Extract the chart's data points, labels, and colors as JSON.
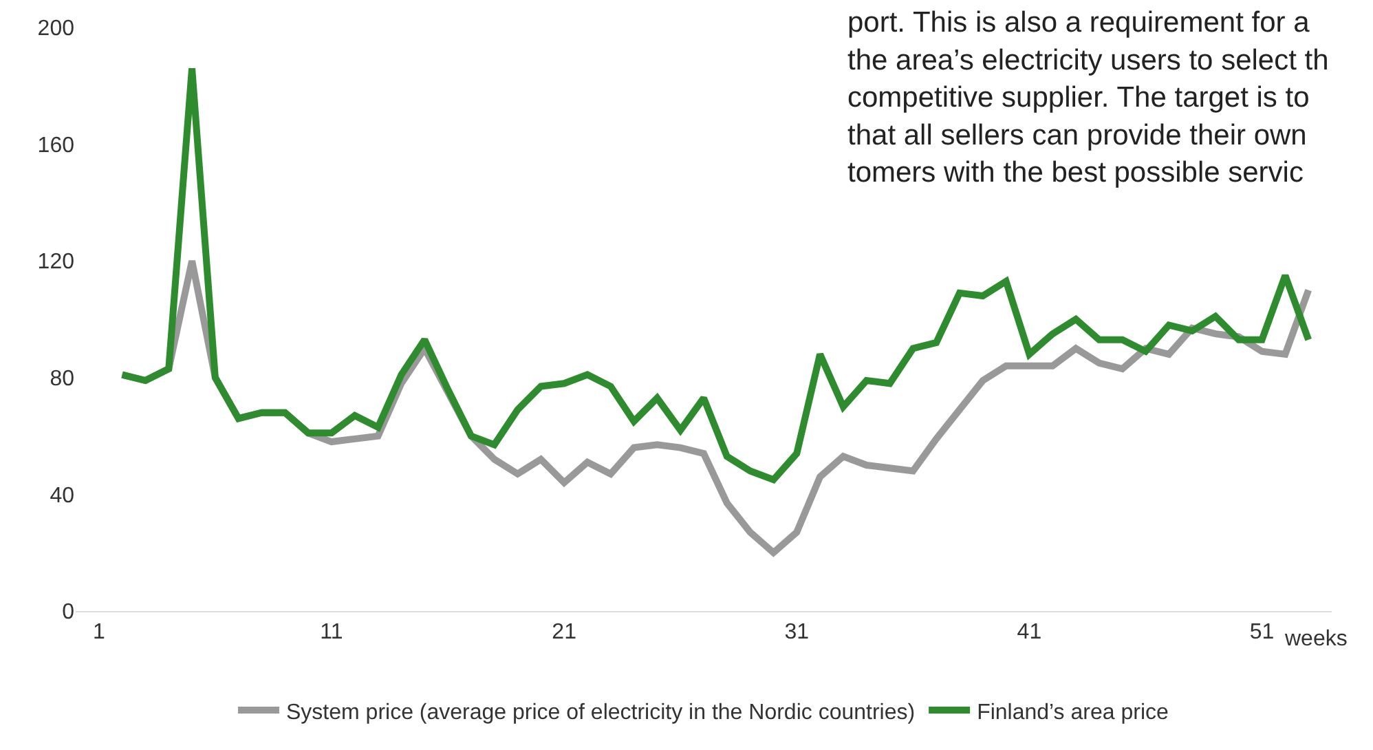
{
  "chart_data": {
    "type": "line",
    "xlabel": "weeks",
    "x": [
      2,
      3,
      4,
      5,
      6,
      7,
      8,
      9,
      10,
      11,
      12,
      13,
      14,
      15,
      16,
      17,
      18,
      19,
      20,
      21,
      22,
      23,
      24,
      25,
      26,
      27,
      28,
      29,
      30,
      31,
      32,
      33,
      34,
      35,
      36,
      37,
      38,
      39,
      40,
      41,
      42,
      43,
      44,
      45,
      46,
      47,
      48,
      49,
      50,
      51,
      52,
      53
    ],
    "series": [
      {
        "name": "System price (average price of electricity in the Nordic countries)",
        "color": "#999999",
        "values": [
          81,
          79,
          83,
          120,
          80,
          66,
          68,
          68,
          61,
          58,
          59,
          60,
          78,
          90,
          75,
          60,
          52,
          47,
          52,
          44,
          51,
          47,
          56,
          57,
          56,
          54,
          37,
          27,
          20,
          27,
          46,
          53,
          50,
          49,
          48,
          59,
          69,
          79,
          84,
          84,
          84,
          90,
          85,
          83,
          90,
          88,
          97,
          95,
          94,
          89,
          88,
          110
        ]
      },
      {
        "name": "Finland’s area price",
        "color": "#2e8b2e",
        "values": [
          81,
          79,
          83,
          186,
          80,
          66,
          68,
          68,
          61,
          61,
          67,
          63,
          81,
          93,
          76,
          60,
          57,
          69,
          77,
          78,
          81,
          77,
          65,
          73,
          62,
          73,
          53,
          48,
          45,
          54,
          88,
          70,
          79,
          78,
          90,
          92,
          109,
          108,
          113,
          88,
          95,
          100,
          93,
          93,
          89,
          98,
          96,
          101,
          93,
          93,
          115,
          93
        ]
      }
    ],
    "xlim": [
      0,
      54
    ],
    "xticks": [
      1,
      11,
      21,
      31,
      41,
      51
    ],
    "ylim": [
      0,
      200
    ],
    "yticks": [
      0,
      40,
      80,
      120,
      160,
      200
    ],
    "legend": "bottom",
    "marker": "none",
    "line_style": "solid",
    "annotations": [
      "port. This is also a requirement for a\nthe area’s electricity users to select th\ncompetitive supplier. The target is to\nthat all sellers can provide their own\ntomers with the best possible servic"
    ]
  }
}
